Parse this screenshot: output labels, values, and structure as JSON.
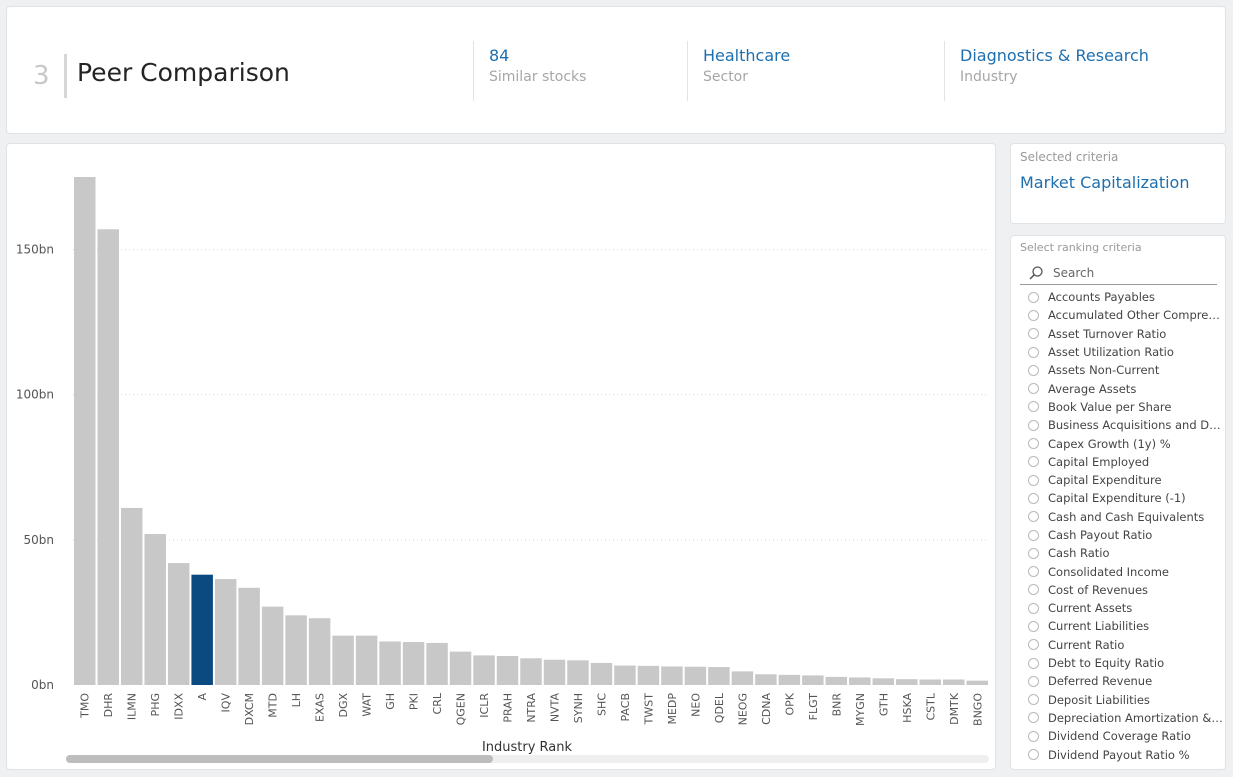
{
  "header": {
    "step_number": "3",
    "title": "Peer Comparison",
    "kpis": [
      {
        "value": "84",
        "label": "Similar stocks"
      },
      {
        "value": "Healthcare",
        "label": "Sector"
      },
      {
        "value": "Diagnostics & Research",
        "label": "Industry"
      }
    ]
  },
  "selected_criteria": {
    "label": "Selected criteria",
    "value": "Market Capitalization"
  },
  "ranking": {
    "label": "Select ranking criteria",
    "search_placeholder": "Search",
    "items": [
      "Accounts Payables",
      "Accumulated Other Comprehensive Income",
      "Asset Turnover Ratio",
      "Asset Utilization Ratio",
      "Assets Non-Current",
      "Average Assets",
      "Book Value per Share",
      "Business Acquisitions and Disposals",
      "Capex Growth (1y) %",
      "Capital Employed",
      "Capital Expenditure",
      "Capital Expenditure (-1)",
      "Cash and Cash Equivalents",
      "Cash Payout Ratio",
      "Cash Ratio",
      "Consolidated Income",
      "Cost of Revenues",
      "Current Assets",
      "Current Liabilities",
      "Current Ratio",
      "Debt to Equity Ratio",
      "Deferred Revenue",
      "Deposit Liabilities",
      "Depreciation Amortization & Accretion",
      "Dividend Coverage Ratio",
      "Dividend Payout Ratio %"
    ]
  },
  "chart_data": {
    "type": "bar",
    "xlabel": "Industry Rank",
    "ylabel": "",
    "ylim": [
      0,
      175
    ],
    "yticks": [
      0,
      50,
      100,
      150
    ],
    "ytick_labels": [
      "0bn",
      "50bn",
      "100bn",
      "150bn"
    ],
    "grid": true,
    "categories": [
      "TMO",
      "DHR",
      "ILMN",
      "PHG",
      "IDXX",
      "A",
      "IQV",
      "DXCM",
      "MTD",
      "LH",
      "EXAS",
      "DGX",
      "WAT",
      "GH",
      "PKI",
      "CRL",
      "QGEN",
      "ICLR",
      "PRAH",
      "NTRA",
      "NVTA",
      "SYNH",
      "SHC",
      "PACB",
      "TWST",
      "MEDP",
      "NEO",
      "QDEL",
      "NEOG",
      "CDNA",
      "OPK",
      "FLGT",
      "BNR",
      "MYGN",
      "GTH",
      "HSKA",
      "CSTL",
      "DMTK",
      "BNGO"
    ],
    "values": [
      175,
      157,
      61,
      52,
      42,
      38,
      36.5,
      33.5,
      27,
      24,
      23,
      17,
      17,
      15,
      14.8,
      14.5,
      11.5,
      10.2,
      10,
      9.2,
      8.7,
      8.5,
      7.6,
      6.7,
      6.6,
      6.4,
      6.3,
      6.2,
      4.7,
      3.7,
      3.5,
      3.3,
      2.8,
      2.6,
      2.3,
      2,
      1.9,
      1.9,
      1.5
    ],
    "highlight": "A",
    "colors": {
      "bar": "#c8c8c8",
      "highlight": "#0b4a80",
      "grid": "#d4d4d4"
    }
  }
}
